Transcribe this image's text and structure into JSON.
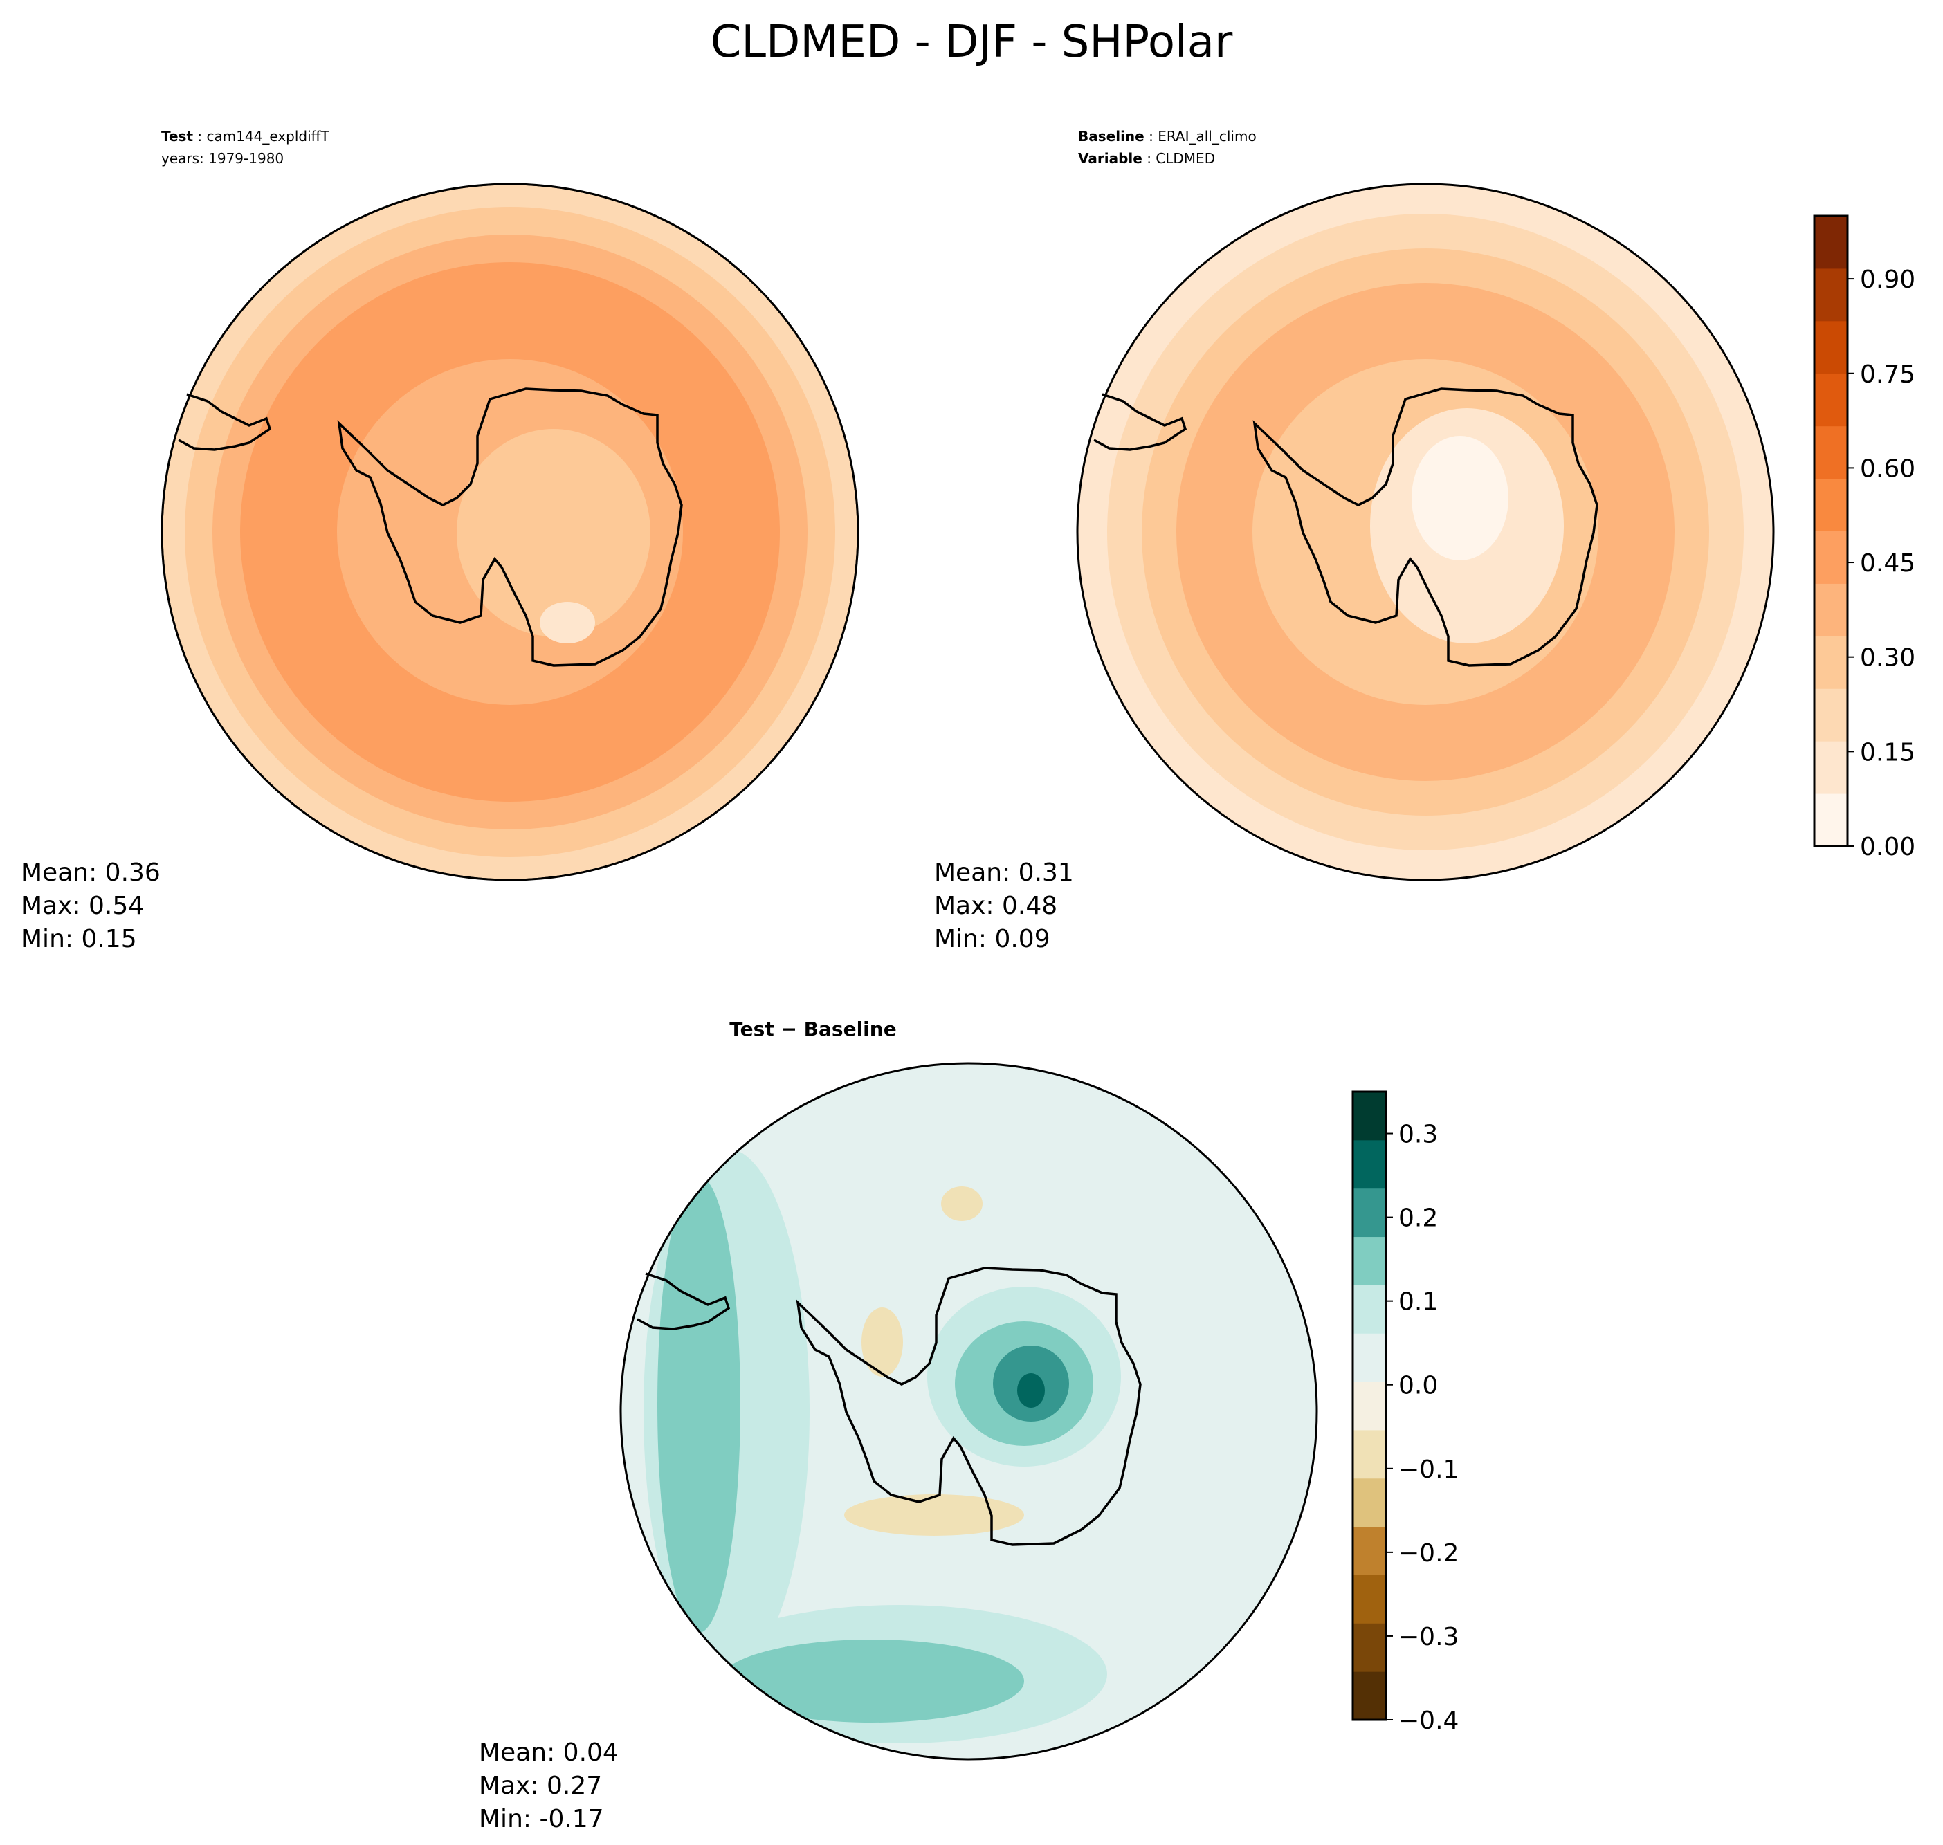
{
  "figure": {
    "title": "CLDMED - DJF - SHPolar"
  },
  "panels": [
    {
      "id": "test",
      "label_bold": "Test",
      "label_value": "cam144_expldiffT",
      "line2": "years: 1979-1980",
      "stats": {
        "mean": "Mean:  0.36",
        "max": "Max:  0.54",
        "min": "Min:  0.15"
      }
    },
    {
      "id": "baseline",
      "label_bold": "Baseline",
      "label_value": "ERAI_all_climo",
      "line2_bold": "Variable",
      "line2_value": "CLDMED",
      "stats": {
        "mean": "Mean:  0.31",
        "max": "Max:  0.48",
        "min": "Min:  0.09"
      }
    },
    {
      "id": "diff",
      "label_bold": "Test − Baseline",
      "stats": {
        "mean": "Mean:  0.04",
        "max": "Max:  0.27",
        "min": "Min: -0.17"
      }
    }
  ],
  "colors": {
    "oranges": [
      "#fff5eb",
      "#fee6ce",
      "#fdd9b3",
      "#fdc997",
      "#fdb47c",
      "#fd9f60",
      "#f9893f",
      "#ef7024",
      "#e05a0e",
      "#cb4a03",
      "#a93b03",
      "#7f2704"
    ],
    "diverging": [
      "#543005",
      "#7a4709",
      "#a0620f",
      "#bf812d",
      "#dfc27d",
      "#f0e1b6",
      "#f5f0e2",
      "#e4f1ef",
      "#c7eae5",
      "#80cdc1",
      "#35978f",
      "#01665e",
      "#003c30"
    ]
  },
  "chart_data": [
    {
      "type": "heatmap",
      "name": "Test",
      "stats": {
        "mean": 0.36,
        "max": 0.54,
        "min": 0.15
      }
    },
    {
      "type": "heatmap",
      "name": "Baseline",
      "stats": {
        "mean": 0.31,
        "max": 0.48,
        "min": 0.09
      },
      "colorbar": {
        "ticks": [
          "0.00",
          "0.15",
          "0.30",
          "0.45",
          "0.60",
          "0.75",
          "0.90"
        ],
        "range": [
          0,
          1.0
        ]
      }
    },
    {
      "type": "heatmap",
      "name": "Test − Baseline",
      "stats": {
        "mean": 0.04,
        "max": 0.27,
        "min": -0.17
      },
      "colorbar": {
        "ticks": [
          "0.3",
          "0.2",
          "0.1",
          "0.0",
          "−0.1",
          "−0.2",
          "−0.3",
          "−0.4"
        ],
        "range": [
          -0.4,
          0.35
        ]
      }
    }
  ]
}
